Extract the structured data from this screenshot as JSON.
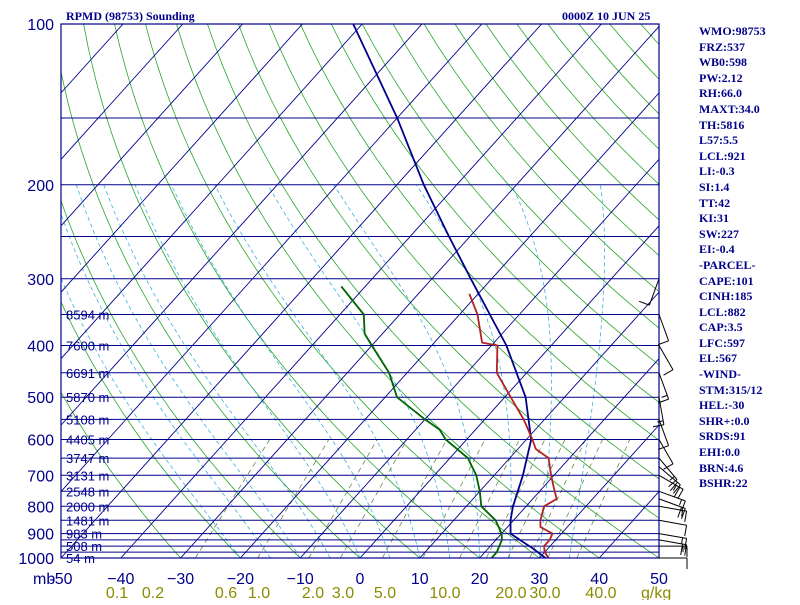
{
  "header": {
    "title": "RPMD (98753) Sounding",
    "date": "0000Z 10 JUN 25"
  },
  "indices": [
    "WMO:98753",
    "FRZ:537",
    "WB0:598",
    "PW:2.12",
    "RH:66.0",
    "MAXT:34.0",
    "TH:5816",
    "L57:5.5",
    "LCL:921",
    "LI:-0.3",
    "SI:1.4",
    "TT:42",
    "KI:31",
    "SW:227",
    "EI:-0.4",
    "-PARCEL-",
    "CAPE:101",
    "CINH:185",
    "LCL:882",
    "CAP:3.5",
    "LFC:597",
    "EL:567",
    "-WIND-",
    "STM:315/12",
    "HEL:-30",
    "SHR+:0.0",
    "SRDS:91",
    "EHI:0.0",
    "BRN:4.6",
    "BSHR:22"
  ],
  "chart_data": {
    "type": "line",
    "subtype": "skew-t log-p sounding",
    "y_scale": "log",
    "y_axis_unit": "mb",
    "ylim": [
      1000,
      100
    ],
    "xlim": [
      -50,
      50
    ],
    "pressure_ticks": [
      100,
      200,
      300,
      400,
      500,
      600,
      700,
      800,
      900,
      1000
    ],
    "isobars": [
      100,
      150,
      200,
      250,
      300,
      350,
      400,
      450,
      500,
      550,
      600,
      650,
      700,
      750,
      800,
      850,
      900,
      925,
      950,
      975,
      1000
    ],
    "temperature_ticks": [
      -50,
      -40,
      -30,
      -20,
      -10,
      0,
      10,
      20,
      30,
      40,
      50
    ],
    "temperature_tick_labels": [
      "-50",
      "−40",
      "−30",
      "−20",
      "−10",
      "0",
      "10",
      "20",
      "30",
      "40",
      "50"
    ],
    "mixing_ratio_unit": "g/kg",
    "mixing_ratio_labels": [
      "0.1",
      "0.2",
      "0.6",
      "1.0",
      "2.0",
      "3.0",
      "5.0",
      "10.0",
      "20.0",
      "30.0",
      "40.0"
    ],
    "height_labels": [
      {
        "p": 1000,
        "label": "54 m"
      },
      {
        "p": 950,
        "label": "508 m"
      },
      {
        "p": 900,
        "label": "983 m"
      },
      {
        "p": 850,
        "label": "1481 m"
      },
      {
        "p": 800,
        "label": "2000 m"
      },
      {
        "p": 750,
        "label": "2548 m"
      },
      {
        "p": 700,
        "label": "3131 m"
      },
      {
        "p": 650,
        "label": "3747 m"
      },
      {
        "p": 600,
        "label": "4405 m"
      },
      {
        "p": 550,
        "label": "5108 m"
      },
      {
        "p": 500,
        "label": "5870 m"
      },
      {
        "p": 450,
        "label": "6691 m"
      },
      {
        "p": 400,
        "label": "7600 m"
      },
      {
        "p": 350,
        "label": "8594 m"
      }
    ],
    "grid": true,
    "series": [
      {
        "role": "parcel",
        "color": "#00008b",
        "points": [
          [
            1000,
            31
          ],
          [
            960,
            27.5
          ],
          [
            925,
            24
          ],
          [
            900,
            21.5
          ],
          [
            850,
            19.5
          ],
          [
            800,
            17.8
          ],
          [
            700,
            14.8
          ],
          [
            600,
            10.8
          ],
          [
            500,
            3.5
          ],
          [
            400,
            -7.5
          ],
          [
            300,
            -23.5
          ],
          [
            250,
            -33.5
          ],
          [
            200,
            -45.5
          ],
          [
            150,
            -60
          ],
          [
            100,
            -81.5
          ]
        ]
      },
      {
        "role": "temperature",
        "color": "#b22222",
        "points": [
          [
            1000,
            31.5
          ],
          [
            975,
            30
          ],
          [
            950,
            29
          ],
          [
            925,
            29
          ],
          [
            900,
            28.5
          ],
          [
            875,
            25.5
          ],
          [
            850,
            24.5
          ],
          [
            800,
            23
          ],
          [
            775,
            24
          ],
          [
            750,
            22.5
          ],
          [
            700,
            19.5
          ],
          [
            650,
            16.5
          ],
          [
            625,
            13
          ],
          [
            600,
            11
          ],
          [
            550,
            6.5
          ],
          [
            500,
            1
          ],
          [
            450,
            -5
          ],
          [
            400,
            -9
          ],
          [
            395,
            -12
          ],
          [
            350,
            -17
          ],
          [
            320,
            -21.5
          ]
        ]
      },
      {
        "role": "dewpoint",
        "color": "#006400",
        "points": [
          [
            1000,
            22
          ],
          [
            975,
            22
          ],
          [
            950,
            21.5
          ],
          [
            925,
            21
          ],
          [
            900,
            20
          ],
          [
            850,
            17
          ],
          [
            800,
            12.5
          ],
          [
            750,
            10
          ],
          [
            700,
            7
          ],
          [
            650,
            3
          ],
          [
            600,
            -3.5
          ],
          [
            575,
            -6
          ],
          [
            550,
            -10
          ],
          [
            500,
            -18
          ],
          [
            450,
            -23
          ],
          [
            400,
            -30
          ],
          [
            380,
            -33
          ],
          [
            350,
            -36
          ],
          [
            310,
            -44
          ]
        ]
      }
    ],
    "wind_barbs": [
      {
        "p": 1000,
        "dir": 270,
        "spd": 10
      },
      {
        "p": 950,
        "dir": 270,
        "spd": 15
      },
      {
        "p": 925,
        "dir": 280,
        "spd": 20
      },
      {
        "p": 900,
        "dir": 280,
        "spd": 15
      },
      {
        "p": 850,
        "dir": 280,
        "spd": 10
      },
      {
        "p": 800,
        "dir": 280,
        "spd": 15
      },
      {
        "p": 775,
        "dir": 290,
        "spd": 20
      },
      {
        "p": 750,
        "dir": 290,
        "spd": 15
      },
      {
        "p": 700,
        "dir": 300,
        "spd": 25
      },
      {
        "p": 675,
        "dir": 310,
        "spd": 20
      },
      {
        "p": 650,
        "dir": 320,
        "spd": 15
      },
      {
        "p": 600,
        "dir": 330,
        "spd": 10
      },
      {
        "p": 550,
        "dir": 340,
        "spd": 10
      },
      {
        "p": 500,
        "dir": 350,
        "spd": 15
      },
      {
        "p": 450,
        "dir": 340,
        "spd": 15
      },
      {
        "p": 400,
        "dir": 330,
        "spd": 10
      },
      {
        "p": 350,
        "dir": 340,
        "spd": 10
      },
      {
        "p": 300,
        "dir": 20,
        "spd": 10
      }
    ]
  }
}
